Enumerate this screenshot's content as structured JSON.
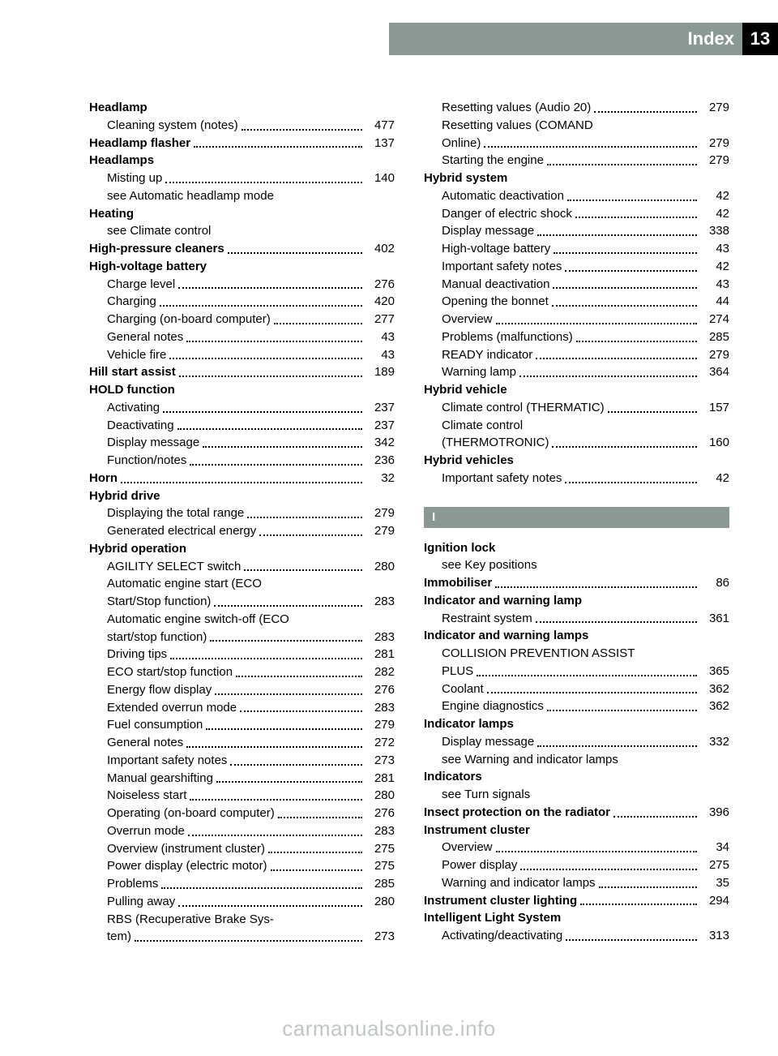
{
  "header": {
    "title": "Index",
    "page_number": "13"
  },
  "palette": {
    "bar_color": "#8b9995",
    "text_color": "#000000",
    "corner_bg": "#000000",
    "corner_text": "#ffffff",
    "watermark_color": "#bfc7c1"
  },
  "section_letter": "I",
  "watermark": "carmanualsonline.info",
  "left_column": [
    {
      "type": "heading",
      "text": "Headlamp"
    },
    {
      "type": "sub",
      "text": "Cleaning system (notes)",
      "page": "477"
    },
    {
      "type": "bold_row",
      "text": "Headlamp flasher",
      "page": "137"
    },
    {
      "type": "heading",
      "text": "Headlamps"
    },
    {
      "type": "sub",
      "text": "Misting up",
      "page": "140"
    },
    {
      "type": "see",
      "text": "see Automatic headlamp mode"
    },
    {
      "type": "heading",
      "text": "Heating"
    },
    {
      "type": "see",
      "text": "see Climate control"
    },
    {
      "type": "bold_row",
      "text": "High-pressure cleaners",
      "page": "402"
    },
    {
      "type": "heading",
      "text": "High-voltage battery"
    },
    {
      "type": "sub",
      "text": "Charge level",
      "page": "276"
    },
    {
      "type": "sub",
      "text": "Charging",
      "page": "420"
    },
    {
      "type": "sub",
      "text": "Charging (on-board computer)",
      "page": "277"
    },
    {
      "type": "sub",
      "text": "General notes",
      "page": "43"
    },
    {
      "type": "sub",
      "text": "Vehicle fire",
      "page": "43"
    },
    {
      "type": "bold_row",
      "text": "Hill start assist",
      "page": "189"
    },
    {
      "type": "heading",
      "text": "HOLD function"
    },
    {
      "type": "sub",
      "text": "Activating",
      "page": "237"
    },
    {
      "type": "sub",
      "text": "Deactivating",
      "page": "237"
    },
    {
      "type": "sub",
      "text": "Display message",
      "page": "342"
    },
    {
      "type": "sub",
      "text": "Function/notes",
      "page": "236"
    },
    {
      "type": "bold_row",
      "text": "Horn",
      "page": "32"
    },
    {
      "type": "heading",
      "text": "Hybrid drive"
    },
    {
      "type": "sub",
      "text": "Displaying the total range",
      "page": "279"
    },
    {
      "type": "sub",
      "text": "Generated electrical energy",
      "page": "279"
    },
    {
      "type": "heading",
      "text": "Hybrid operation"
    },
    {
      "type": "sub",
      "text": "AGILITY SELECT switch",
      "page": "280"
    },
    {
      "type": "sub_multi",
      "lines": [
        "Automatic engine start (ECO",
        "Start/Stop function)"
      ],
      "page": "283"
    },
    {
      "type": "sub_multi",
      "lines": [
        "Automatic engine switch-off (ECO",
        "start/stop function)"
      ],
      "page": "283"
    },
    {
      "type": "sub",
      "text": "Driving tips",
      "page": "281"
    },
    {
      "type": "sub",
      "text": "ECO start/stop function",
      "page": "282"
    },
    {
      "type": "sub",
      "text": "Energy flow display",
      "page": "276"
    },
    {
      "type": "sub",
      "text": "Extended overrun mode",
      "page": "283"
    },
    {
      "type": "sub",
      "text": "Fuel consumption",
      "page": "279"
    },
    {
      "type": "sub",
      "text": "General notes",
      "page": "272"
    },
    {
      "type": "sub",
      "text": "Important safety notes",
      "page": "273"
    },
    {
      "type": "sub",
      "text": "Manual gearshifting",
      "page": "281"
    },
    {
      "type": "sub",
      "text": "Noiseless start",
      "page": "280"
    },
    {
      "type": "sub",
      "text": "Operating (on-board computer)",
      "page": "276"
    },
    {
      "type": "sub",
      "text": "Overrun mode",
      "page": "283"
    },
    {
      "type": "sub",
      "text": "Overview (instrument cluster)",
      "page": "275"
    },
    {
      "type": "sub",
      "text": "Power display (electric motor)",
      "page": "275"
    },
    {
      "type": "sub",
      "text": "Problems",
      "page": "285"
    },
    {
      "type": "sub",
      "text": "Pulling away",
      "page": "280"
    },
    {
      "type": "sub_multi",
      "lines": [
        "RBS (Recuperative Brake Sys-",
        "tem)"
      ],
      "page": "273"
    }
  ],
  "right_column_top": [
    {
      "type": "sub",
      "text": "Resetting values (Audio 20)",
      "page": "279"
    },
    {
      "type": "sub_multi",
      "lines": [
        "Resetting values (COMAND",
        "Online)"
      ],
      "page": "279"
    },
    {
      "type": "sub",
      "text": "Starting the engine",
      "page": "279"
    },
    {
      "type": "heading",
      "text": "Hybrid system"
    },
    {
      "type": "sub",
      "text": "Automatic deactivation",
      "page": "42"
    },
    {
      "type": "sub",
      "text": "Danger of electric shock",
      "page": "42"
    },
    {
      "type": "sub",
      "text": "Display message",
      "page": "338"
    },
    {
      "type": "sub",
      "text": "High-voltage battery",
      "page": "43"
    },
    {
      "type": "sub",
      "text": "Important safety notes",
      "page": "42"
    },
    {
      "type": "sub",
      "text": "Manual deactivation",
      "page": "43"
    },
    {
      "type": "sub",
      "text": "Opening the bonnet",
      "page": "44"
    },
    {
      "type": "sub",
      "text": "Overview",
      "page": "274"
    },
    {
      "type": "sub",
      "text": "Problems (malfunctions)",
      "page": "285"
    },
    {
      "type": "sub",
      "text": "READY indicator",
      "page": "279"
    },
    {
      "type": "sub",
      "text": "Warning lamp",
      "page": "364"
    },
    {
      "type": "heading",
      "text": "Hybrid vehicle"
    },
    {
      "type": "sub",
      "text": "Climate control (THERMATIC)",
      "page": "157"
    },
    {
      "type": "sub_multi",
      "lines": [
        "Climate control",
        "(THERMOTRONIC)"
      ],
      "page": "160"
    },
    {
      "type": "heading",
      "text": "Hybrid vehicles"
    },
    {
      "type": "sub",
      "text": "Important safety notes",
      "page": "42"
    }
  ],
  "right_column_bottom": [
    {
      "type": "heading",
      "text": "Ignition lock"
    },
    {
      "type": "see",
      "text": "see Key positions"
    },
    {
      "type": "bold_row",
      "text": "Immobiliser",
      "page": "86"
    },
    {
      "type": "heading",
      "text": "Indicator and warning lamp"
    },
    {
      "type": "sub",
      "text": "Restraint system",
      "page": "361"
    },
    {
      "type": "heading",
      "text": "Indicator and warning lamps"
    },
    {
      "type": "sub_multi",
      "lines": [
        "COLLISION PREVENTION ASSIST",
        "PLUS"
      ],
      "page": "365"
    },
    {
      "type": "sub",
      "text": "Coolant",
      "page": "362"
    },
    {
      "type": "sub",
      "text": "Engine diagnostics",
      "page": "362"
    },
    {
      "type": "heading",
      "text": "Indicator lamps"
    },
    {
      "type": "sub",
      "text": "Display message",
      "page": "332"
    },
    {
      "type": "see",
      "text": "see Warning and indicator lamps"
    },
    {
      "type": "heading",
      "text": "Indicators"
    },
    {
      "type": "see",
      "text": "see Turn signals"
    },
    {
      "type": "bold_row",
      "text": "Insect protection on the radiator",
      "page": "396"
    },
    {
      "type": "heading",
      "text": "Instrument cluster"
    },
    {
      "type": "sub",
      "text": "Overview",
      "page": "34"
    },
    {
      "type": "sub",
      "text": "Power display",
      "page": "275"
    },
    {
      "type": "sub",
      "text": "Warning and indicator lamps",
      "page": "35"
    },
    {
      "type": "bold_row",
      "text": "Instrument cluster lighting",
      "page": "294"
    },
    {
      "type": "heading",
      "text": "Intelligent Light System"
    },
    {
      "type": "sub",
      "text": "Activating/deactivating",
      "page": "313"
    }
  ]
}
